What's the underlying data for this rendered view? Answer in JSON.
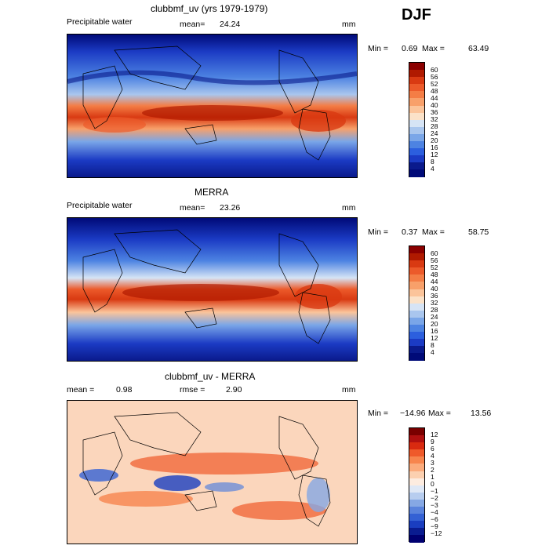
{
  "season": "DJF",
  "panels": [
    {
      "title": "clubbmf_uv (yrs 1979-1979)",
      "left_label": "Precipitable water",
      "mean_label": "mean=",
      "mean_value": "24.24",
      "units": "mm",
      "min_label": "Min =",
      "min_value": "0.69",
      "max_label": "Max =",
      "max_value": "63.49",
      "colorbar_ticks": [
        "60",
        "56",
        "52",
        "48",
        "44",
        "40",
        "36",
        "32",
        "28",
        "24",
        "20",
        "16",
        "12",
        "8",
        "4"
      ]
    },
    {
      "title": "MERRA",
      "left_label": "Precipitable water",
      "mean_label": "mean=",
      "mean_value": "23.26",
      "units": "mm",
      "min_label": "Min =",
      "min_value": "0.37",
      "max_label": "Max =",
      "max_value": "58.75",
      "colorbar_ticks": [
        "60",
        "56",
        "52",
        "48",
        "44",
        "40",
        "36",
        "32",
        "28",
        "24",
        "20",
        "16",
        "12",
        "8",
        "4"
      ]
    },
    {
      "title": "clubbmf_uv - MERRA",
      "mean_label": "mean =",
      "mean_value": "0.98",
      "rmse_label": "rmse =",
      "rmse_value": "2.90",
      "units": "mm",
      "min_label": "Min =",
      "min_value": "−14.96",
      "max_label": "Max =",
      "max_value": "13.56",
      "colorbar_ticks": [
        "12",
        "9",
        "6",
        "4",
        "3",
        "2",
        "1",
        "0",
        "−1",
        "−2",
        "−3",
        "−4",
        "−6",
        "−9",
        "−12"
      ]
    }
  ],
  "colors": {
    "seq": [
      "#8b0000",
      "#b01a00",
      "#d93a12",
      "#ec5a2a",
      "#f47d45",
      "#f8a06a",
      "#fbc49a",
      "#fbe2c8",
      "#d6e4f5",
      "#a9c6ee",
      "#7aa6e8",
      "#4d83e2",
      "#2c5fde",
      "#1b3bc4",
      "#0a1a8c",
      "#000a78"
    ],
    "div": [
      "#7a0000",
      "#b01010",
      "#d92a10",
      "#ef5a2a",
      "#f7854d",
      "#fbab7c",
      "#fcd0b0",
      "#fdece0",
      "#dfe8f6",
      "#b7cdef",
      "#86a8e4",
      "#5a83dc",
      "#3461d4",
      "#1a3ec0",
      "#0a1c90",
      "#000070"
    ]
  }
}
